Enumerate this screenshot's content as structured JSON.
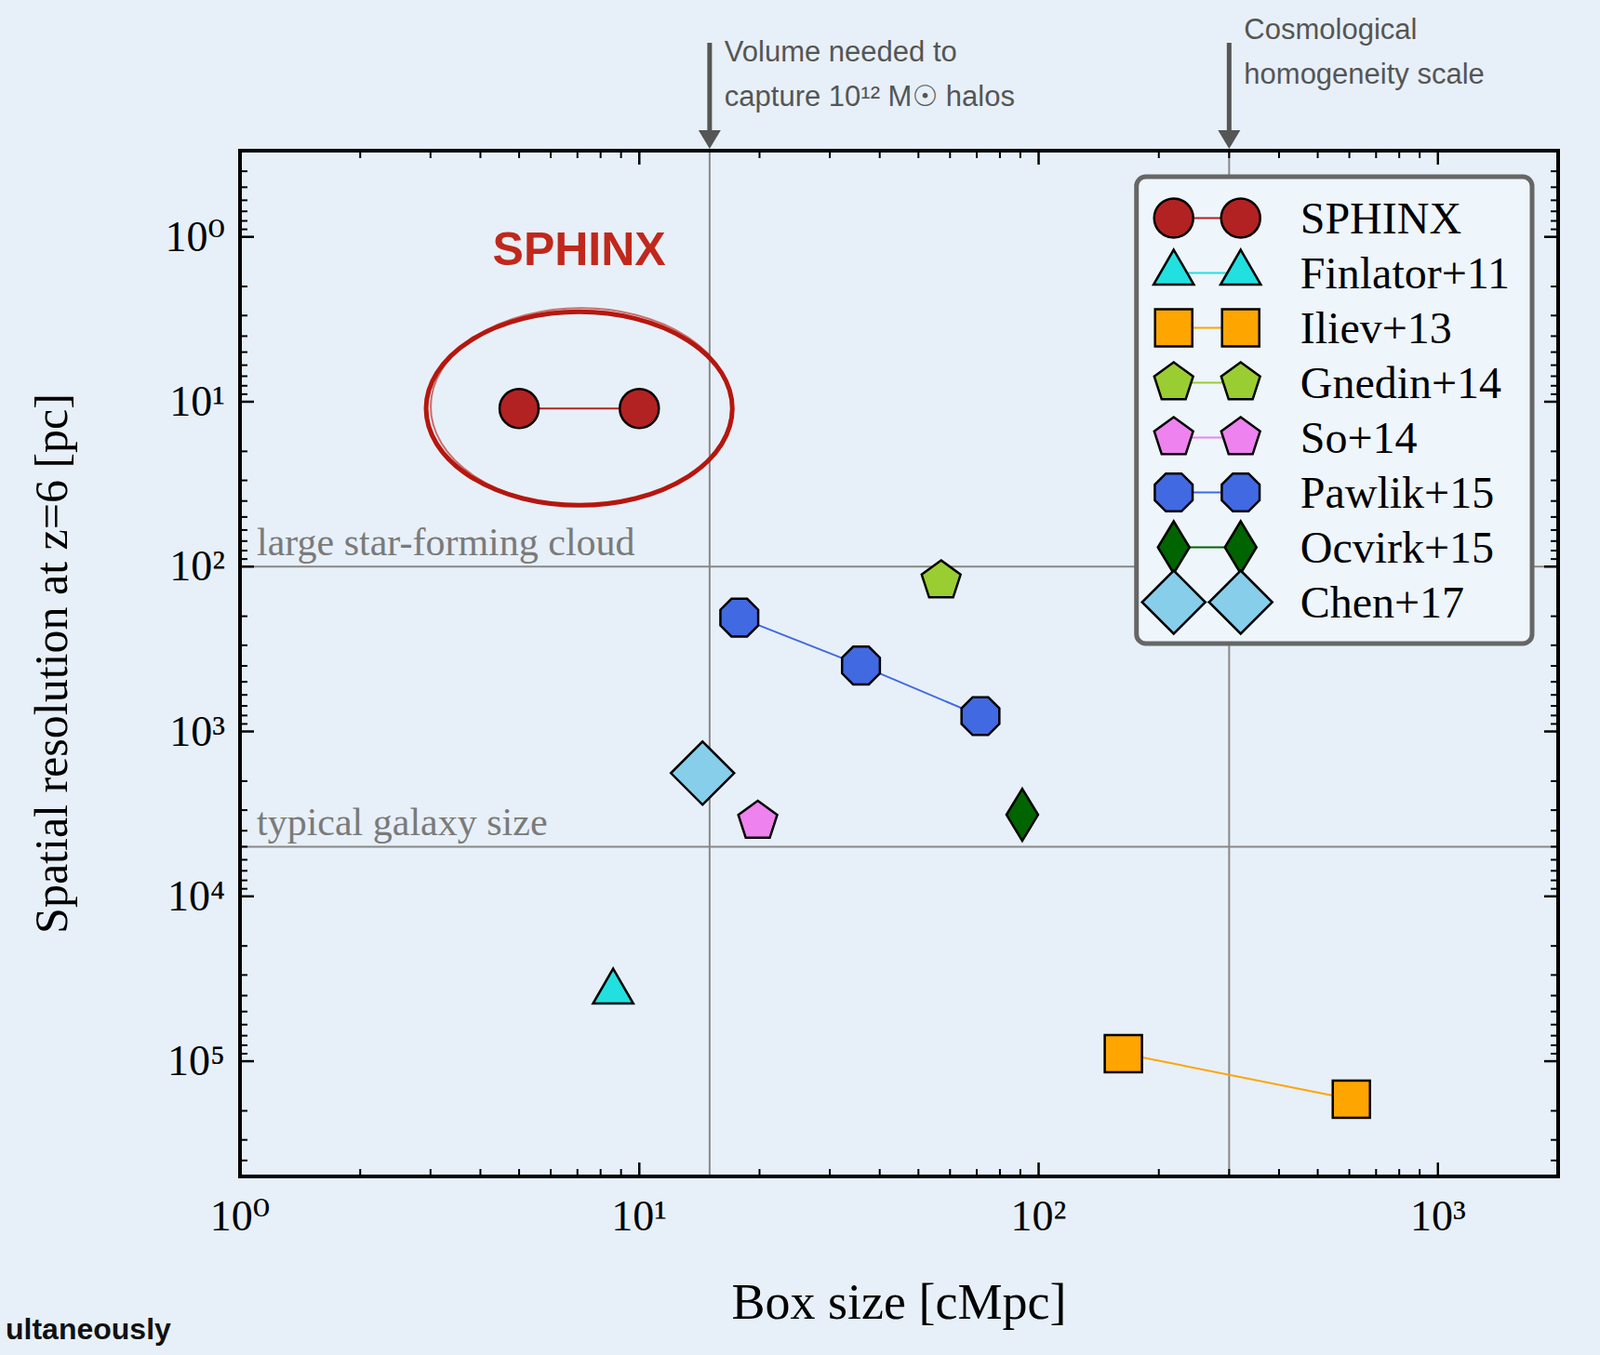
{
  "chart_data": {
    "type": "scatter",
    "x_label": "Box size [cMpc]",
    "y_label": "Spatial resolution at z=6 [pc]",
    "log": true,
    "grid": false,
    "legend": "upper right",
    "xlim": [
      1,
      2000
    ],
    "ylim": [
      0.3,
      500000
    ],
    "xticks": [
      {
        "value": 1,
        "label": "10⁰"
      },
      {
        "value": 10,
        "label": "10¹"
      },
      {
        "value": 100,
        "label": "10²"
      },
      {
        "value": 1000,
        "label": "10³"
      }
    ],
    "yticks": [
      {
        "value": 1,
        "label": "10⁰"
      },
      {
        "value": 10,
        "label": "10¹"
      },
      {
        "value": 100,
        "label": "10²"
      },
      {
        "value": 1000,
        "label": "10³"
      },
      {
        "value": 10000,
        "label": "10⁴"
      },
      {
        "value": 100000,
        "label": "10⁵"
      }
    ],
    "series": [
      {
        "name": "SPHINX",
        "color": "#b22222",
        "marker": "circle",
        "line_style": "solid",
        "x": [
          5,
          10
        ],
        "values": [
          11,
          11
        ]
      },
      {
        "name": "Finlator+11",
        "color": "#22e0e0",
        "marker": "triangle",
        "line_style": "solid",
        "x": [
          8.6
        ],
        "values": [
          38000
        ]
      },
      {
        "name": "Iliev+13",
        "color": "#ffa500",
        "marker": "square",
        "line_style": "solid",
        "x": [
          163,
          607
        ],
        "values": [
          90000,
          170000
        ]
      },
      {
        "name": "Gnedin+14",
        "color": "#9acd32",
        "marker": "pentagon",
        "line_style": "solid",
        "x": [
          57
        ],
        "values": [
          122
        ]
      },
      {
        "name": "So+14",
        "color": "#ee82ee",
        "marker": "pentagon",
        "line_style": "solid",
        "x": [
          19.8
        ],
        "values": [
          3500
        ]
      },
      {
        "name": "Pawlik+15",
        "color": "#4169e1",
        "marker": "octagon",
        "line_style": "solid",
        "x": [
          17.8,
          35.9,
          71.5
        ],
        "values": [
          204,
          398,
          807
        ]
      },
      {
        "name": "Ocvirk+15",
        "color": "#006400",
        "marker": "thin_diamond",
        "line_style": "solid",
        "x": [
          91
        ],
        "values": [
          3200
        ]
      },
      {
        "name": "Chen+17",
        "color": "#87ceeb",
        "marker": "diamond",
        "line_style": "solid",
        "x": [
          14.4
        ],
        "values": [
          1790
        ]
      }
    ],
    "x_markers": [
      {
        "value": 15,
        "label": [
          "Volume needed to",
          "capture 10¹² M☉ halos"
        ]
      },
      {
        "value": 300,
        "label": [
          "Cosmological",
          "homogeneity scale"
        ]
      }
    ],
    "y_markers": [
      {
        "value": 100,
        "label": "large star-forming cloud"
      },
      {
        "value": 5000,
        "label": "typical galaxy size"
      }
    ],
    "highlight": "SPHINX",
    "footer": "ultaneously"
  }
}
